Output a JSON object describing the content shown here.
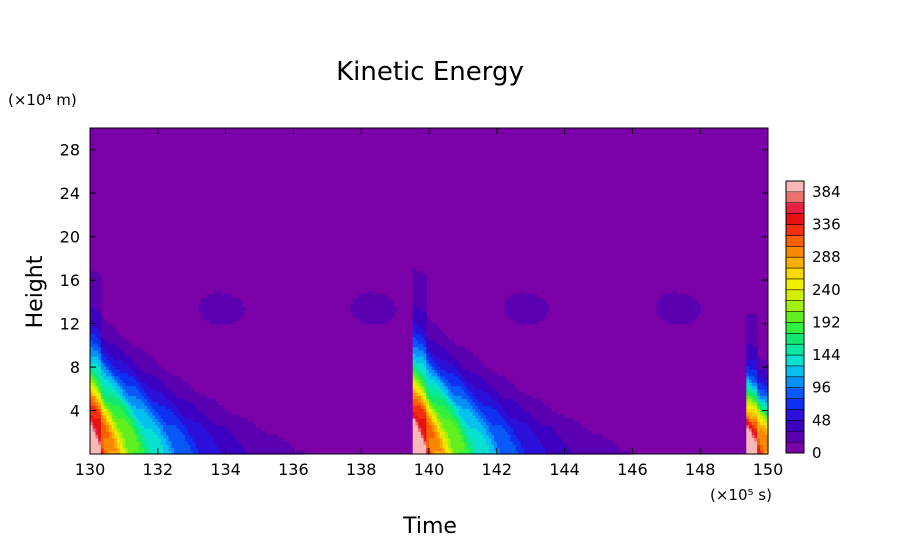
{
  "chart_data": {
    "type": "heatmap",
    "title": "Kinetic Energy",
    "xlabel": "Time",
    "ylabel": "Height",
    "x_unit": "(×10⁵ s)",
    "y_unit": "(×10⁴ m)",
    "xlim": [
      130,
      150
    ],
    "ylim": [
      0,
      30
    ],
    "x_ticks": [
      130,
      132,
      134,
      136,
      138,
      140,
      142,
      144,
      146,
      148,
      150
    ],
    "y_ticks": [
      4,
      8,
      12,
      16,
      20,
      24,
      28
    ],
    "colorbar": {
      "min": 0,
      "max": 400,
      "ticks": [
        0,
        48,
        96,
        144,
        192,
        240,
        288,
        336,
        384
      ],
      "levels": 25,
      "colors": [
        "#7a00a8",
        "#5a00b0",
        "#3d00c0",
        "#2a10d8",
        "#1030f0",
        "#0a58f8",
        "#0890f8",
        "#08c0f0",
        "#08e0d0",
        "#08e8a0",
        "#10e870",
        "#30f040",
        "#60f020",
        "#a0f010",
        "#d0f000",
        "#f0f000",
        "#f8d800",
        "#f8b000",
        "#f88800",
        "#f86000",
        "#f03010",
        "#e81010",
        "#e82040",
        "#f07070",
        "#f8b8b8"
      ]
    },
    "background_value": 0,
    "events": [
      {
        "onset_time": 130.0,
        "peak_value": 400,
        "core_top_height": 10,
        "pink_top_height": 1.8
      },
      {
        "onset_time": 139.6,
        "peak_value": 400,
        "core_top_height": 10,
        "pink_top_height": 1.8
      },
      {
        "onset_time": 149.4,
        "peak_value": 400,
        "core_top_height": 6,
        "pink_top_height": 1.5
      }
    ],
    "upper_band": {
      "height_min": 11,
      "height_max": 16,
      "value": 24
    }
  }
}
